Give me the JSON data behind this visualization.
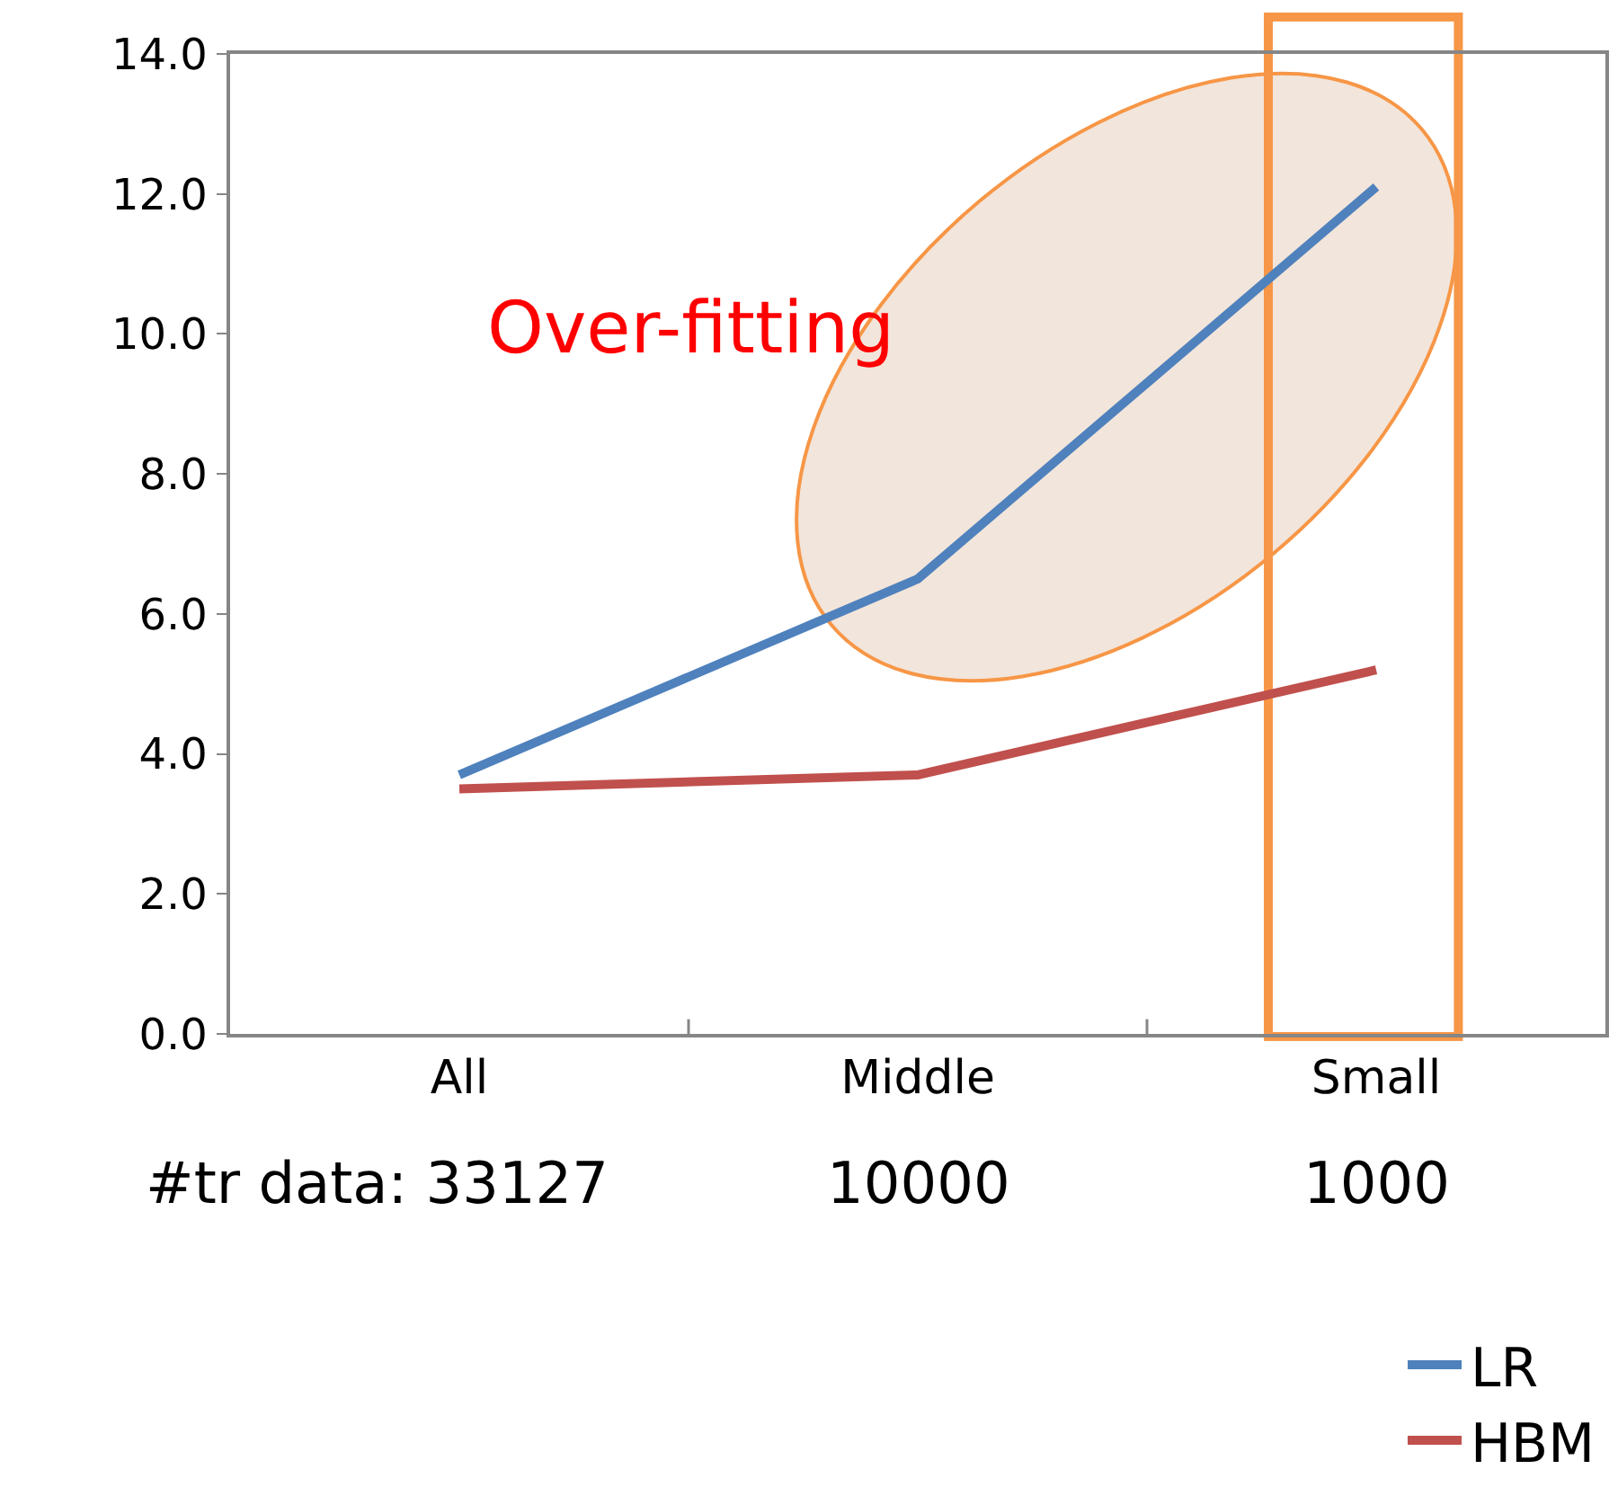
{
  "chart_data": {
    "type": "line",
    "categories": [
      "All",
      "Middle",
      "Small"
    ],
    "series": [
      {
        "name": "LR",
        "color": "#4f81bd",
        "values": [
          3.7,
          6.5,
          12.1
        ]
      },
      {
        "name": "HBM",
        "color": "#c0504d",
        "values": [
          3.5,
          3.7,
          5.2
        ]
      }
    ],
    "ylim": [
      0,
      14
    ],
    "yticks": [
      {
        "value": 0,
        "label": "0.0"
      },
      {
        "value": 2,
        "label": "2.0"
      },
      {
        "value": 4,
        "label": "4.0"
      },
      {
        "value": 6,
        "label": "6.0"
      },
      {
        "value": 8,
        "label": "8.0"
      },
      {
        "value": 10,
        "label": "10.0"
      },
      {
        "value": 12,
        "label": "12.0"
      },
      {
        "value": 14,
        "label": "14.0"
      }
    ],
    "annotations": [
      "Over-fitting",
      "#tr data: 33127",
      "10000",
      "1000"
    ],
    "legend": "bottom right",
    "grid": false,
    "marker": "none",
    "line_style": "solid"
  }
}
